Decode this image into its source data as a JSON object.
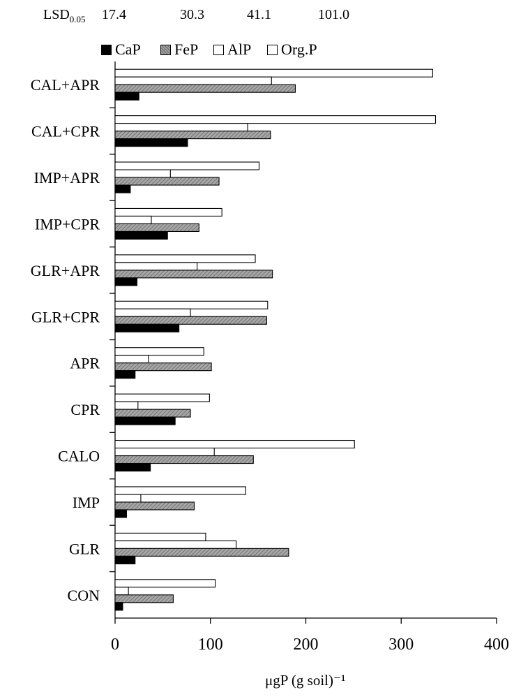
{
  "header": {
    "lsd_prefix": "LSD",
    "lsd_subscript": "0.05",
    "lsd_values": [
      "17.4",
      "30.3",
      "41.1",
      "101.0"
    ]
  },
  "legend": {
    "items": [
      {
        "label": "CaP",
        "style": "black"
      },
      {
        "label": "FeP",
        "style": "gray"
      },
      {
        "label": "AlP",
        "style": "white"
      },
      {
        "label": "Org.P",
        "style": "white"
      }
    ]
  },
  "chart_data": {
    "type": "bar",
    "orientation": "horizontal",
    "xlabel": "μgP (g soil)⁻¹",
    "xlim": [
      0,
      400
    ],
    "xticks": [
      "0",
      "100",
      "200",
      "300",
      "400"
    ],
    "categories": [
      "CAL+APR",
      "CAL+CPR",
      "IMP+APR",
      "IMP+CPR",
      "GLR+APR",
      "GLR+CPR",
      "APR",
      "CPR",
      "CALO",
      "IMP",
      "GLR",
      "CON"
    ],
    "series": [
      {
        "name": "CaP",
        "color": "#000000",
        "values": [
          25,
          76,
          16,
          55,
          23,
          67,
          21,
          63,
          37,
          12,
          21,
          8
        ]
      },
      {
        "name": "FeP",
        "color": "#999999",
        "values": [
          189,
          163,
          109,
          88,
          165,
          159,
          101,
          79,
          145,
          83,
          182,
          61
        ]
      },
      {
        "name": "AlP",
        "color": "#ffffff",
        "values": [
          164,
          139,
          58,
          38,
          86,
          79,
          35,
          24,
          104,
          27,
          127,
          14
        ]
      },
      {
        "name": "Org.P",
        "color": "#ffffff",
        "values": [
          333,
          336,
          151,
          112,
          147,
          160,
          93,
          99,
          251,
          137,
          95,
          105
        ]
      }
    ],
    "grid": false,
    "legend_position": "top"
  }
}
